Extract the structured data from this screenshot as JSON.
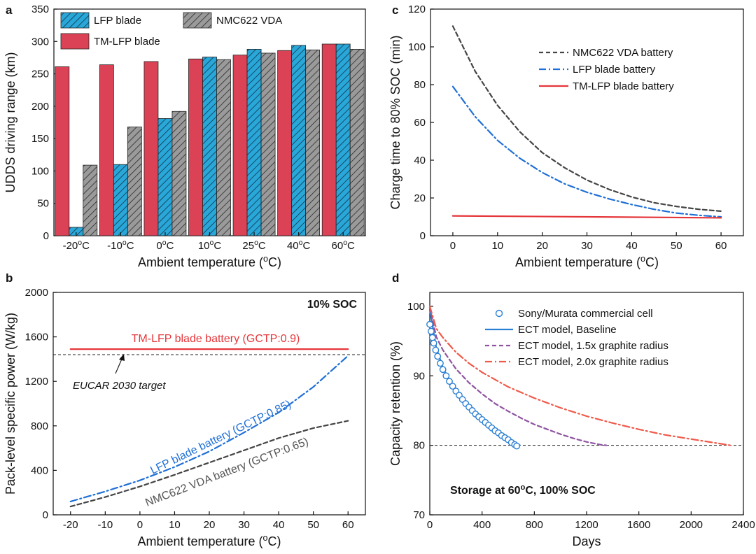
{
  "colors": {
    "lfp": "#29a7d8",
    "tm_lfp": "#dc4256",
    "nmc": "#8c8c8c",
    "nmc_line": "#444444",
    "lfp_line": "#1f6fd6",
    "tm_line": "#e5363a",
    "baseline": "#2a7fd4",
    "radius15": "#8e54a0",
    "radius20": "#ef5a4a"
  },
  "panels": {
    "a": "a",
    "b": "b",
    "c": "c",
    "d": "d"
  },
  "chart_data": [
    {
      "id": "a",
      "type": "bar",
      "xlabel": "Ambient temperature (°C)",
      "ylabel": "UDDS driving range (km)",
      "ylim": [
        0,
        350
      ],
      "yticks": [
        0,
        50,
        100,
        150,
        200,
        250,
        300,
        350
      ],
      "categories": [
        "-20°C",
        "-10°C",
        "0°C",
        "10°C",
        "25°C",
        "40°C",
        "60°C"
      ],
      "series": [
        {
          "name": "TM-LFP blade",
          "color": "#dc4256",
          "pattern": "none",
          "values": [
            261,
            264,
            269,
            273,
            279,
            286,
            296
          ]
        },
        {
          "name": "LFP blade",
          "color": "#29a7d8",
          "pattern": "hatch",
          "values": [
            13,
            110,
            181,
            276,
            288,
            294,
            296
          ]
        },
        {
          "name": "NMC622 VDA",
          "color": "#8c8c8c",
          "pattern": "hatch",
          "values": [
            109,
            168,
            192,
            272,
            282,
            287,
            288
          ]
        }
      ],
      "legend": [
        "LFP blade",
        "NMC622 VDA",
        "TM-LFP blade"
      ],
      "legend_position": "top-left"
    },
    {
      "id": "b",
      "type": "line",
      "xlabel": "Ambient temperature (°C)",
      "ylabel": "Pack-level specific power (W/kg)",
      "xlim": [
        -25,
        65
      ],
      "ylim": [
        0,
        2000
      ],
      "xticks": [
        -20,
        -10,
        0,
        10,
        20,
        30,
        40,
        50,
        60
      ],
      "yticks": [
        0,
        400,
        800,
        1200,
        1600,
        2000
      ],
      "corner_label": "10% SOC",
      "series": [
        {
          "name": "TM-LFP blade battery (GCTP:0.9)",
          "style": "solid",
          "color": "#e5363a",
          "x": [
            -20,
            60
          ],
          "y": [
            1490,
            1490
          ]
        },
        {
          "name": "LFP blade battery (GCTP:0.85)",
          "style": "dashdot",
          "color": "#1f6fd6",
          "x": [
            -20,
            -10,
            0,
            10,
            20,
            30,
            40,
            50,
            60
          ],
          "y": [
            120,
            210,
            310,
            430,
            570,
            740,
            920,
            1150,
            1430
          ]
        },
        {
          "name": "NMC622 VDA battery (GCTP:0.65)",
          "style": "dash",
          "color": "#444444",
          "x": [
            -20,
            -10,
            0,
            10,
            20,
            30,
            40,
            50,
            60
          ],
          "y": [
            75,
            160,
            255,
            360,
            470,
            580,
            690,
            780,
            845
          ]
        }
      ],
      "reference": {
        "label": "EUCAR 2030 target",
        "y": 1440
      }
    },
    {
      "id": "c",
      "type": "line",
      "xlabel": "Ambient temperature (°C)",
      "ylabel": "Charge time to 80% SOC (min)",
      "xlim": [
        -5,
        65
      ],
      "ylim": [
        0,
        120
      ],
      "xticks": [
        0,
        10,
        20,
        30,
        40,
        50,
        60
      ],
      "yticks": [
        0,
        20,
        40,
        60,
        80,
        100,
        120
      ],
      "series": [
        {
          "name": "NMC622 VDA battery",
          "style": "dash",
          "color": "#444444",
          "x": [
            0,
            5,
            10,
            15,
            20,
            25,
            30,
            35,
            40,
            45,
            50,
            55,
            60
          ],
          "y": [
            111,
            87,
            69,
            55,
            44,
            36,
            29.5,
            24.5,
            20.5,
            17.5,
            15.5,
            14,
            13
          ]
        },
        {
          "name": "LFP blade battery",
          "style": "dashdot",
          "color": "#1f6fd6",
          "x": [
            0,
            5,
            10,
            15,
            20,
            25,
            30,
            35,
            40,
            45,
            50,
            55,
            60
          ],
          "y": [
            79,
            63,
            50.5,
            41,
            33.5,
            27.5,
            23,
            19.5,
            16.5,
            14,
            12,
            10.8,
            10
          ]
        },
        {
          "name": "TM-LFP blade battery",
          "style": "solid",
          "color": "#e5363a",
          "x": [
            0,
            60
          ],
          "y": [
            10.5,
            9.5
          ]
        }
      ],
      "legend_position": "top-right"
    },
    {
      "id": "d",
      "type": "line",
      "xlabel": "Days",
      "ylabel": "Capacity retention (%)",
      "xlim": [
        0,
        2400
      ],
      "ylim": [
        70,
        102
      ],
      "xticks": [
        0,
        400,
        800,
        1200,
        1600,
        2000,
        2400
      ],
      "yticks": [
        70,
        80,
        90,
        100
      ],
      "corner_label": "Storage at 60°C, 100% SOC",
      "reference": {
        "y": 80
      },
      "series": [
        {
          "name": "Sony/Murata commercial cell",
          "style": "markers",
          "color": "#2a7fd4",
          "x": [
            0,
            10,
            20,
            30,
            45,
            60,
            80,
            100,
            125,
            150,
            175,
            200,
            225,
            250,
            275,
            300,
            325,
            350,
            375,
            400,
            425,
            450,
            475,
            500,
            525,
            550,
            575,
            600,
            625,
            650,
            665
          ],
          "y": [
            97.4,
            96.4,
            95.5,
            94.7,
            93.7,
            92.8,
            91.8,
            90.9,
            90.0,
            89.2,
            88.5,
            87.8,
            87.2,
            86.6,
            86.0,
            85.5,
            85.0,
            84.5,
            84.1,
            83.7,
            83.3,
            82.9,
            82.5,
            82.1,
            81.8,
            81.4,
            81.1,
            80.8,
            80.4,
            80.1,
            79.9
          ]
        },
        {
          "name": "ECT model, Baseline",
          "style": "solid",
          "color": "#2a7fd4",
          "x": [
            0,
            50,
            100,
            150,
            200,
            250,
            300,
            350,
            400,
            450,
            500,
            550,
            600,
            650,
            690
          ],
          "y": [
            99.5,
            94.0,
            91.2,
            89.3,
            87.7,
            86.4,
            85.2,
            84.2,
            83.3,
            82.5,
            81.8,
            81.2,
            80.7,
            80.3,
            80.0
          ]
        },
        {
          "name": "ECT model, 1.5x graphite radius",
          "style": "dash",
          "color": "#8e54a0",
          "x": [
            0,
            50,
            100,
            200,
            300,
            400,
            500,
            600,
            700,
            800,
            900,
            1000,
            1100,
            1200,
            1300,
            1350
          ],
          "y": [
            99.8,
            95.6,
            93.7,
            91.0,
            89.0,
            87.4,
            86.0,
            84.9,
            83.9,
            83.0,
            82.3,
            81.6,
            81.0,
            80.5,
            80.1,
            80.0
          ]
        },
        {
          "name": "ECT model, 2.0x graphite radius",
          "style": "dashdot",
          "color": "#ef5a4a",
          "x": [
            0,
            50,
            100,
            200,
            300,
            400,
            600,
            800,
            1000,
            1200,
            1400,
            1600,
            1800,
            2000,
            2200,
            2300
          ],
          "y": [
            100,
            96.8,
            95.5,
            93.4,
            91.8,
            90.5,
            88.4,
            86.8,
            85.4,
            84.2,
            83.2,
            82.3,
            81.5,
            80.9,
            80.3,
            80.0
          ]
        }
      ],
      "legend_position": "top-right"
    }
  ]
}
